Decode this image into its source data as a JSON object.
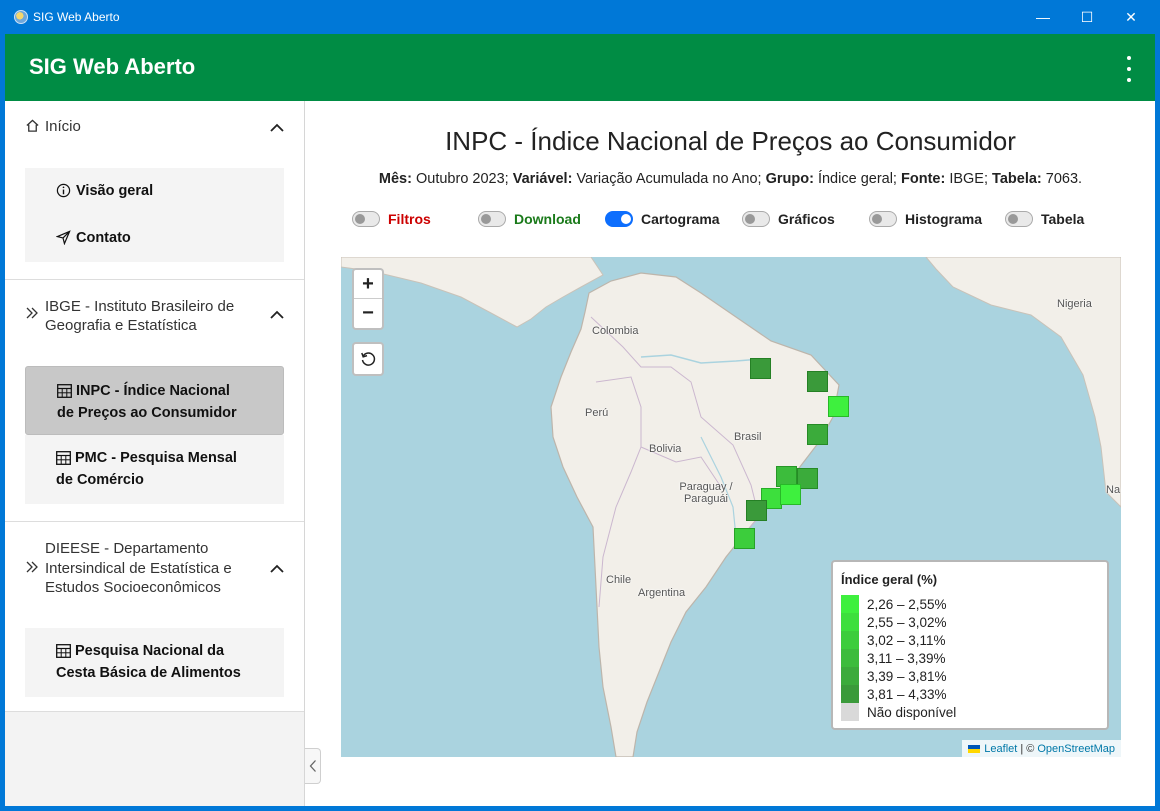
{
  "window": {
    "title": "SIG Web Aberto",
    "minimize": "—",
    "maximize": "☐",
    "close": "✕"
  },
  "appbar": {
    "title": "SIG Web Aberto"
  },
  "sidebar": {
    "sections": [
      {
        "label": "Início",
        "icon": "home-icon",
        "items": [
          {
            "label": "Visão geral",
            "icon": "info-icon"
          },
          {
            "label": "Contato",
            "icon": "send-icon"
          }
        ]
      },
      {
        "label_lines": [
          "IBGE - Instituto Brasileiro de",
          "Geografia e Estatística"
        ],
        "icon": "chevrons-right-icon",
        "items": [
          {
            "label_lines": [
              "INPC - Índice Nacional",
              "de Preços ao Consumidor"
            ],
            "icon": "table-icon",
            "active": true
          },
          {
            "label_lines": [
              "PMC - Pesquisa Mensal",
              "de Comércio"
            ],
            "icon": "table-icon"
          }
        ]
      },
      {
        "label_lines": [
          "DIEESE - Departamento",
          "Intersindical de Estatística e",
          "Estudos Socioeconômicos"
        ],
        "icon": "chevrons-right-icon",
        "items": [
          {
            "label_lines": [
              "Pesquisa Nacional da",
              "Cesta Básica de Alimentos"
            ],
            "icon": "table-icon"
          }
        ]
      }
    ]
  },
  "main": {
    "title": "INPC - Índice Nacional de Preços ao Consumidor",
    "meta": {
      "mes_label": "Mês:",
      "mes_value": "Outubro 2023;",
      "variavel_label": "Variável:",
      "variavel_value": "Variação Acumulada no Ano;",
      "grupo_label": "Grupo:",
      "grupo_value": "Índice geral;",
      "fonte_label": "Fonte:",
      "fonte_value": "IBGE;",
      "tabela_label": "Tabela:",
      "tabela_value": "7063."
    },
    "toggles": [
      {
        "label": "Filtros",
        "on": false,
        "color": "#cc0000"
      },
      {
        "label": "Download",
        "on": false,
        "color": "#1a7a1a"
      },
      {
        "label": "Cartograma",
        "on": true,
        "color": "#222222"
      },
      {
        "label": "Gráficos",
        "on": false,
        "color": "#222222"
      },
      {
        "label": "Histograma",
        "on": false,
        "color": "#222222"
      },
      {
        "label": "Tabela",
        "on": false,
        "color": "#222222"
      }
    ]
  },
  "map": {
    "zoom_in": "+",
    "zoom_out": "−",
    "places": [
      "Colombia",
      "Perú",
      "Brasil",
      "Bolivia",
      "Paraguay / Paraguái",
      "Chile",
      "Argentina",
      "Nigeria",
      "Na"
    ],
    "legend": {
      "title": "Índice geral (%)",
      "rows": [
        {
          "label": "2,26 – 2,55%",
          "color": "#3ef03e"
        },
        {
          "label": "2,55 – 3,02%",
          "color": "#3ddf3d"
        },
        {
          "label": "3,02 – 3,11%",
          "color": "#3ccd3c"
        },
        {
          "label": "3,11 – 3,39%",
          "color": "#3cbc3c"
        },
        {
          "label": "3,39 – 3,81%",
          "color": "#3bab3b"
        },
        {
          "label": "3,81 – 4,33%",
          "color": "#3a9a3a"
        },
        {
          "label": "Não disponível",
          "color": "#d9d9d9"
        }
      ]
    },
    "cells": [
      {
        "region": "Belém",
        "color": "#3a9a3a"
      },
      {
        "region": "Fortaleza",
        "color": "#3a9a3a"
      },
      {
        "region": "Recife",
        "color": "#3ef03e"
      },
      {
        "region": "Salvador",
        "color": "#3bab3b"
      },
      {
        "region": "Goiânia",
        "color": "#3cbc3c"
      },
      {
        "region": "Vitória",
        "color": "#3bab3b"
      },
      {
        "region": "Belo Horizonte",
        "color": "#3ddf3d"
      },
      {
        "region": "Rio de Janeiro",
        "color": "#3ef03e"
      },
      {
        "region": "Curitiba",
        "color": "#3a9a3a"
      },
      {
        "region": "Porto Alegre",
        "color": "#3ccd3c"
      }
    ],
    "attribution": {
      "leaflet": "Leaflet",
      "sep": "| ©",
      "osm": "OpenStreetMap"
    }
  }
}
